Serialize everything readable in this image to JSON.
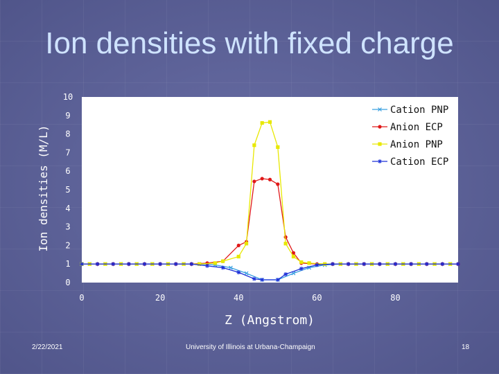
{
  "slide": {
    "title": "Ion densities with fixed charge",
    "date": "2/22/2021",
    "institution": "University of Illinois at Urbana-Champaign",
    "page_number": "18"
  },
  "chart_data": {
    "type": "line",
    "title": "",
    "xlabel": "Z (Angstrom)",
    "ylabel": "Ion densities (M/L)",
    "xlim": [
      0,
      96
    ],
    "ylim": [
      0,
      10
    ],
    "x_ticks": [
      0,
      20,
      40,
      60,
      80
    ],
    "y_ticks": [
      0,
      1,
      2,
      3,
      4,
      5,
      6,
      7,
      8,
      9,
      10
    ],
    "grid": false,
    "legend_position": "top-right",
    "series": [
      {
        "name": "Cation PNP",
        "color": "#3aa0e0",
        "marker": "x",
        "x": [
          0,
          2,
          6,
          10,
          14,
          18,
          22,
          26,
          30,
          34,
          38,
          42,
          46,
          50,
          54,
          58,
          62,
          66,
          70,
          74,
          78,
          82,
          86,
          90,
          94
        ],
        "y": [
          1.0,
          1.0,
          1.0,
          1.0,
          1.0,
          1.0,
          1.0,
          1.0,
          1.0,
          0.95,
          0.8,
          0.5,
          0.15,
          0.15,
          0.5,
          0.8,
          0.95,
          1.0,
          1.0,
          1.0,
          1.0,
          1.0,
          1.0,
          1.0,
          1.0
        ]
      },
      {
        "name": "Anion ECP",
        "color": "#e01818",
        "marker": "dot",
        "x": [
          0,
          4,
          8,
          12,
          16,
          20,
          24,
          28,
          32,
          36,
          40,
          42,
          44,
          46,
          48,
          50,
          52,
          54,
          56,
          60,
          64,
          68,
          72,
          76,
          80,
          84,
          88,
          92,
          96
        ],
        "y": [
          1.0,
          1.0,
          1.0,
          1.0,
          1.0,
          1.0,
          1.0,
          1.0,
          1.05,
          1.15,
          2.0,
          2.2,
          5.45,
          5.6,
          5.55,
          5.3,
          2.45,
          1.6,
          1.05,
          1.0,
          1.0,
          1.0,
          1.0,
          1.0,
          1.0,
          1.0,
          1.0,
          1.0,
          1.0
        ]
      },
      {
        "name": "Anion PNP",
        "color": "#e8e800",
        "marker": "square",
        "x": [
          0,
          2,
          6,
          10,
          14,
          18,
          22,
          26,
          30,
          34,
          36,
          40,
          42,
          44,
          46,
          48,
          50,
          52,
          54,
          56,
          58,
          62,
          66,
          70,
          74,
          78,
          82,
          86,
          90,
          94
        ],
        "y": [
          1.0,
          1.0,
          1.0,
          1.0,
          1.0,
          1.0,
          1.0,
          1.0,
          1.0,
          1.05,
          1.15,
          1.4,
          2.1,
          7.4,
          8.6,
          8.65,
          7.3,
          2.1,
          1.4,
          1.1,
          1.05,
          1.0,
          1.0,
          1.0,
          1.0,
          1.0,
          1.0,
          1.0,
          1.0,
          1.0
        ]
      },
      {
        "name": "Cation ECP",
        "color": "#1a2ed8",
        "marker": "star",
        "x": [
          0,
          4,
          8,
          12,
          16,
          20,
          24,
          28,
          32,
          36,
          40,
          44,
          46,
          50,
          52,
          56,
          60,
          64,
          68,
          72,
          76,
          80,
          84,
          88,
          92,
          96
        ],
        "y": [
          1.0,
          1.0,
          1.0,
          1.0,
          1.0,
          1.0,
          1.0,
          1.0,
          0.9,
          0.8,
          0.55,
          0.2,
          0.15,
          0.15,
          0.45,
          0.75,
          0.95,
          1.0,
          1.0,
          1.0,
          1.0,
          1.0,
          1.0,
          1.0,
          1.0,
          1.0
        ]
      }
    ]
  }
}
